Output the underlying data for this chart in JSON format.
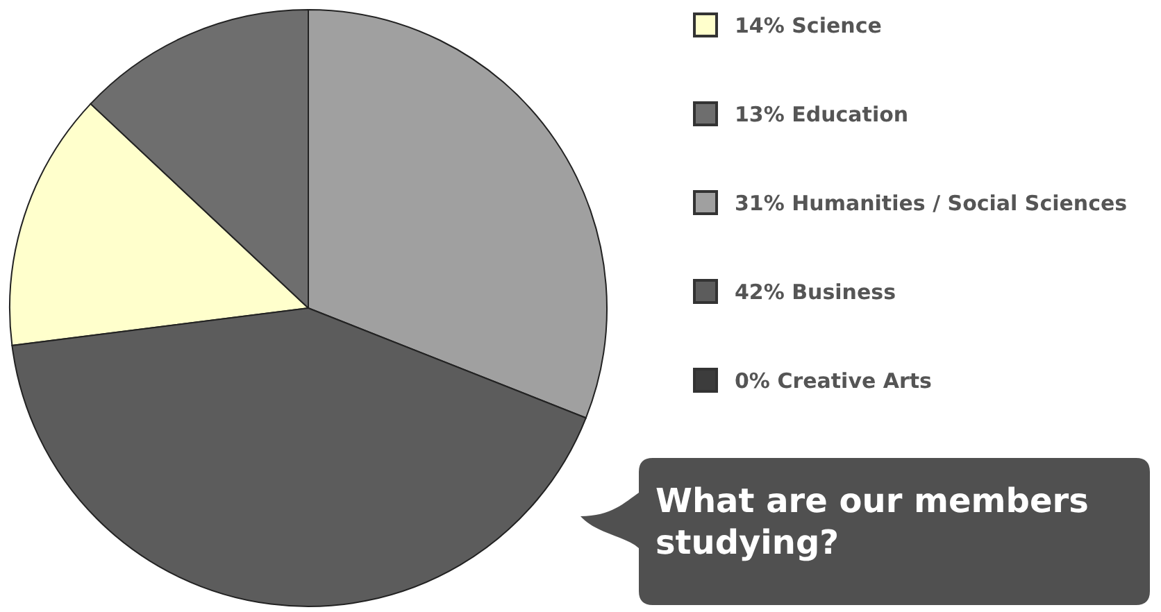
{
  "chart_data": {
    "type": "pie",
    "title": "What are our members studying?",
    "categories": [
      "Science",
      "Education",
      "Humanities / Social Sciences",
      "Business",
      "Creative Arts"
    ],
    "values": [
      14,
      13,
      31,
      42,
      0
    ],
    "value_labels": [
      "14%",
      "13%",
      "31%",
      "42%",
      "0%"
    ],
    "colors": [
      "#ffffcc",
      "#6e6e6e",
      "#a0a0a0",
      "#5c5c5c",
      "#3c3c3c"
    ],
    "legend": "right"
  }
}
